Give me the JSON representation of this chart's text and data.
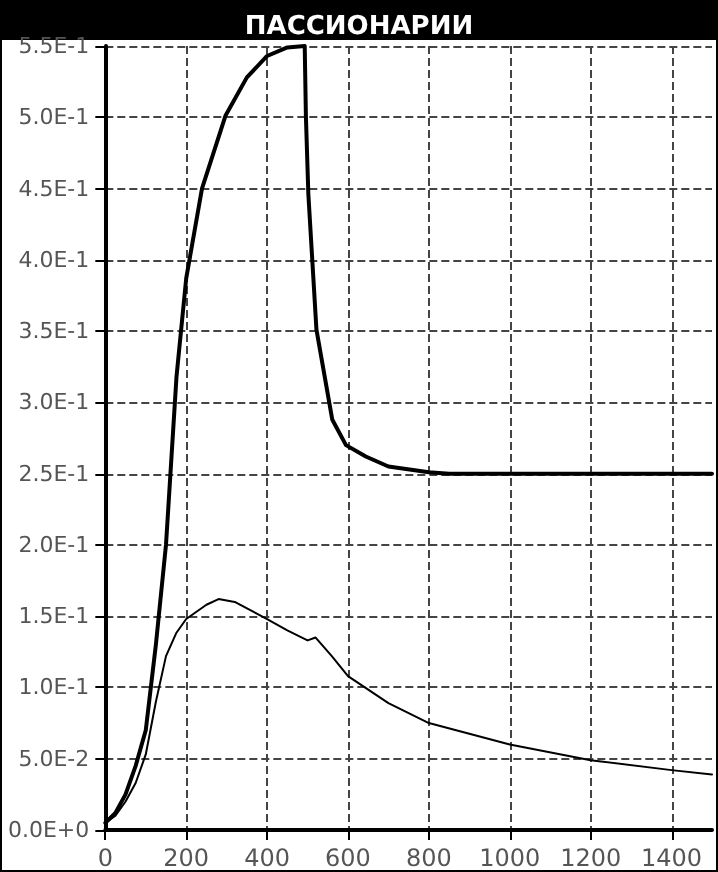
{
  "chart_data": {
    "type": "line",
    "title": "ПАССИОНАРИИ",
    "series": [
      {
        "color": "#000000",
        "x": [
          0,
          25,
          50,
          75,
          100,
          125,
          150,
          176,
          200,
          239,
          297,
          350,
          400,
          450,
          493,
          496,
          502,
          522,
          561,
          595,
          644,
          700,
          800,
          850,
          1000,
          1200,
          1500
        ],
        "values": [
          0.005,
          0.012,
          0.025,
          0.045,
          0.07,
          0.13,
          0.2,
          0.318,
          0.387,
          0.45,
          0.501,
          0.528,
          0.543,
          0.549,
          0.55,
          0.5,
          0.446,
          0.351,
          0.288,
          0.27,
          0.262,
          0.255,
          0.251,
          0.25,
          0.25,
          0.25,
          0.25
        ]
      },
      {
        "color": "#000000",
        "x": [
          0,
          25,
          50,
          75,
          100,
          125,
          150,
          175,
          200,
          250,
          280,
          320,
          400,
          450,
          500,
          520,
          560,
          600,
          700,
          800,
          1000,
          1200,
          1400,
          1500
        ],
        "values": [
          0.005,
          0.01,
          0.02,
          0.033,
          0.053,
          0.09,
          0.122,
          0.138,
          0.148,
          0.158,
          0.162,
          0.16,
          0.148,
          0.14,
          0.133,
          0.135,
          0.122,
          0.108,
          0.089,
          0.075,
          0.06,
          0.049,
          0.042,
          0.039
        ]
      }
    ],
    "xlim": [
      0,
      1500
    ],
    "xticks": [
      0,
      200,
      400,
      600,
      800,
      1000,
      1200,
      1400
    ],
    "ylim": [
      0,
      0.55
    ],
    "yticks": [
      {
        "value": 0,
        "label": "0.0E+0"
      },
      {
        "value": 0.05,
        "label": "5.0E-2"
      },
      {
        "value": 0.1,
        "label": "1.0E-1"
      },
      {
        "value": 0.15,
        "label": "1.5E-1"
      },
      {
        "value": 0.2,
        "label": "2.0E-1"
      },
      {
        "value": 0.25,
        "label": "2.5E-1"
      },
      {
        "value": 0.3,
        "label": "3.0E-1"
      },
      {
        "value": 0.35,
        "label": "3.5E-1"
      },
      {
        "value": 0.4,
        "label": "4.0E-1"
      },
      {
        "value": 0.45,
        "label": "4.5E-1"
      },
      {
        "value": 0.5,
        "label": "5.0E-1"
      },
      {
        "value": 0.55,
        "label": "5.5E-1"
      }
    ],
    "grid": true,
    "marker": "none",
    "line_style": "solid"
  }
}
